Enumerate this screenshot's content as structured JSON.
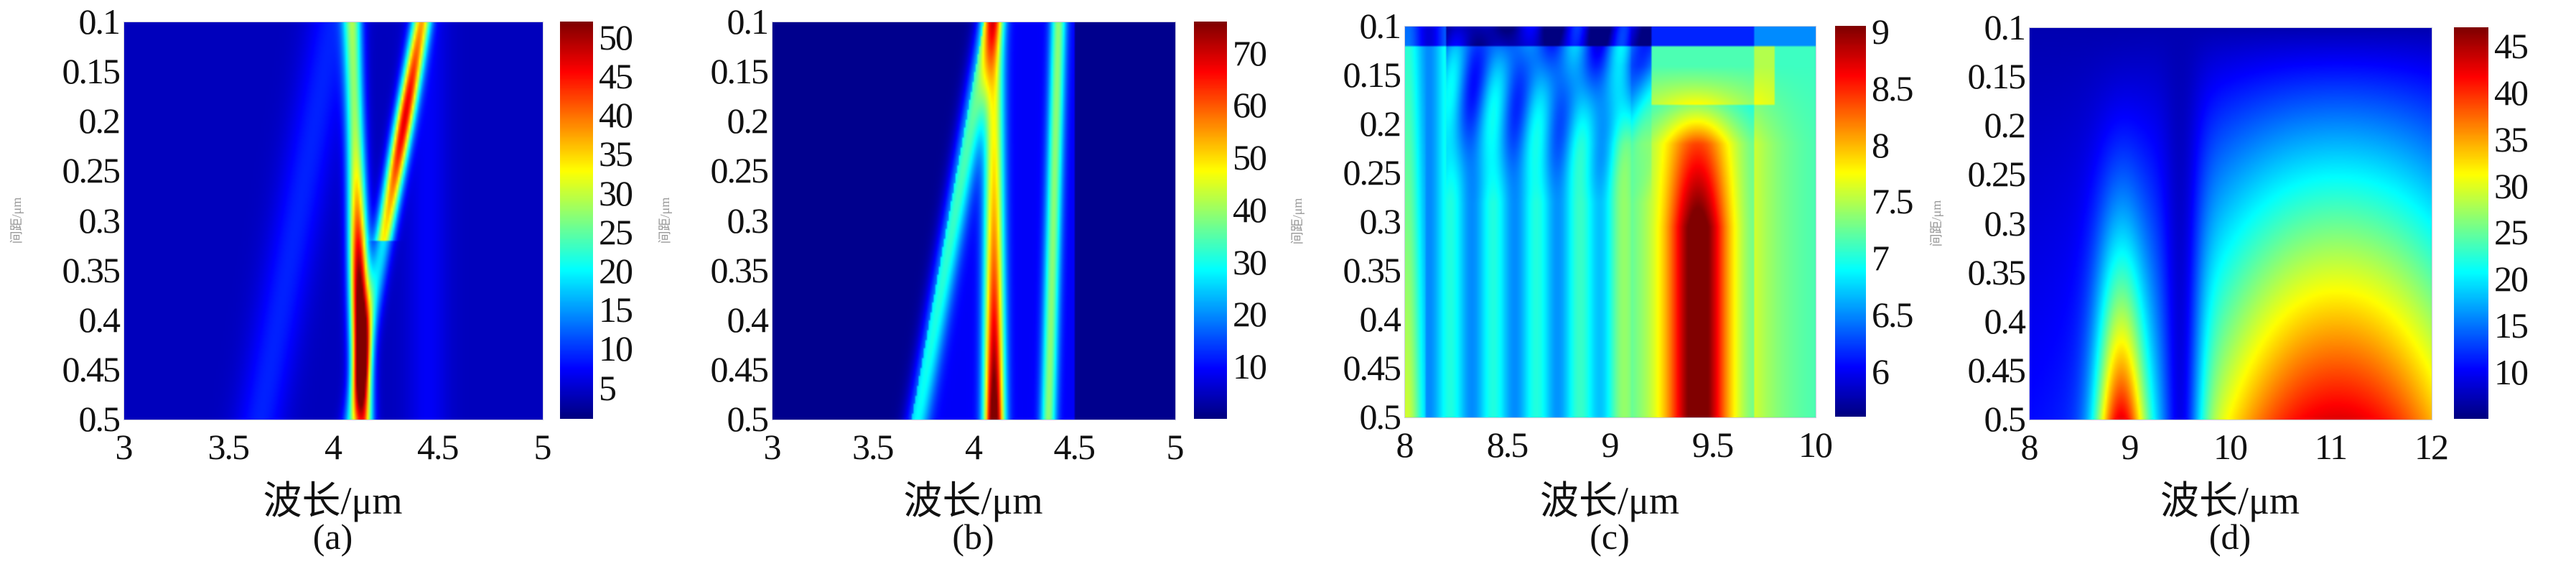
{
  "chart_data": [
    {
      "type": "heatmap",
      "panel_label": "(a)",
      "xlabel": "波长/μm",
      "ylabel": "间距/μm",
      "xlim": [
        3,
        5
      ],
      "ylim": [
        0.5,
        0.1
      ],
      "xticks": [
        "3",
        "3.5",
        "4",
        "4.5",
        "5"
      ],
      "yticks": [
        "0.1",
        "0.15",
        "0.2",
        "0.25",
        "0.3",
        "0.35",
        "0.4",
        "0.45",
        "0.5"
      ],
      "colorbar": {
        "range": [
          1,
          52
        ],
        "ticks": [
          "5",
          "10",
          "15",
          "20",
          "25",
          "30",
          "35",
          "40",
          "45",
          "50"
        ]
      },
      "colormap": "jet"
    },
    {
      "type": "heatmap",
      "panel_label": "(b)",
      "xlabel": "波长/μm",
      "ylabel": "间距/μm",
      "xlim": [
        3,
        5
      ],
      "ylim": [
        0.5,
        0.1
      ],
      "xticks": [
        "3",
        "3.5",
        "4",
        "4.5",
        "5"
      ],
      "yticks": [
        "0.1",
        "0.15",
        "0.2",
        "0.25",
        "0.3",
        "0.35",
        "0.4",
        "0.45",
        "0.5"
      ],
      "colorbar": {
        "range": [
          0,
          76
        ],
        "ticks": [
          "10",
          "20",
          "30",
          "40",
          "50",
          "60",
          "70"
        ]
      },
      "colormap": "jet"
    },
    {
      "type": "heatmap",
      "panel_label": "(c)",
      "xlabel": "波长/μm",
      "ylabel": "间距/μm",
      "xlim": [
        8,
        10
      ],
      "ylim": [
        0.5,
        0.1
      ],
      "xticks": [
        "8",
        "8.5",
        "9",
        "9.5",
        "10"
      ],
      "yticks": [
        "0.1",
        "0.15",
        "0.2",
        "0.25",
        "0.3",
        "0.35",
        "0.4",
        "0.45",
        "0.5"
      ],
      "colorbar": {
        "range": [
          5.6,
          9.05
        ],
        "ticks": [
          "6",
          "6.5",
          "7",
          "7.5",
          "8",
          "8.5",
          "9"
        ]
      },
      "colormap": "jet"
    },
    {
      "type": "heatmap",
      "panel_label": "(d)",
      "xlabel": "波长/μm",
      "ylabel": "间距/μm",
      "xlim": [
        8,
        12
      ],
      "ylim": [
        0.5,
        0.1
      ],
      "xticks": [
        "8",
        "9",
        "10",
        "11",
        "12"
      ],
      "yticks": [
        "0.1",
        "0.15",
        "0.2",
        "0.25",
        "0.3",
        "0.35",
        "0.4",
        "0.45",
        "0.5"
      ],
      "colorbar": {
        "range": [
          5,
          47
        ],
        "ticks": [
          "10",
          "15",
          "20",
          "25",
          "30",
          "35",
          "40",
          "45"
        ]
      },
      "colormap": "jet"
    }
  ]
}
